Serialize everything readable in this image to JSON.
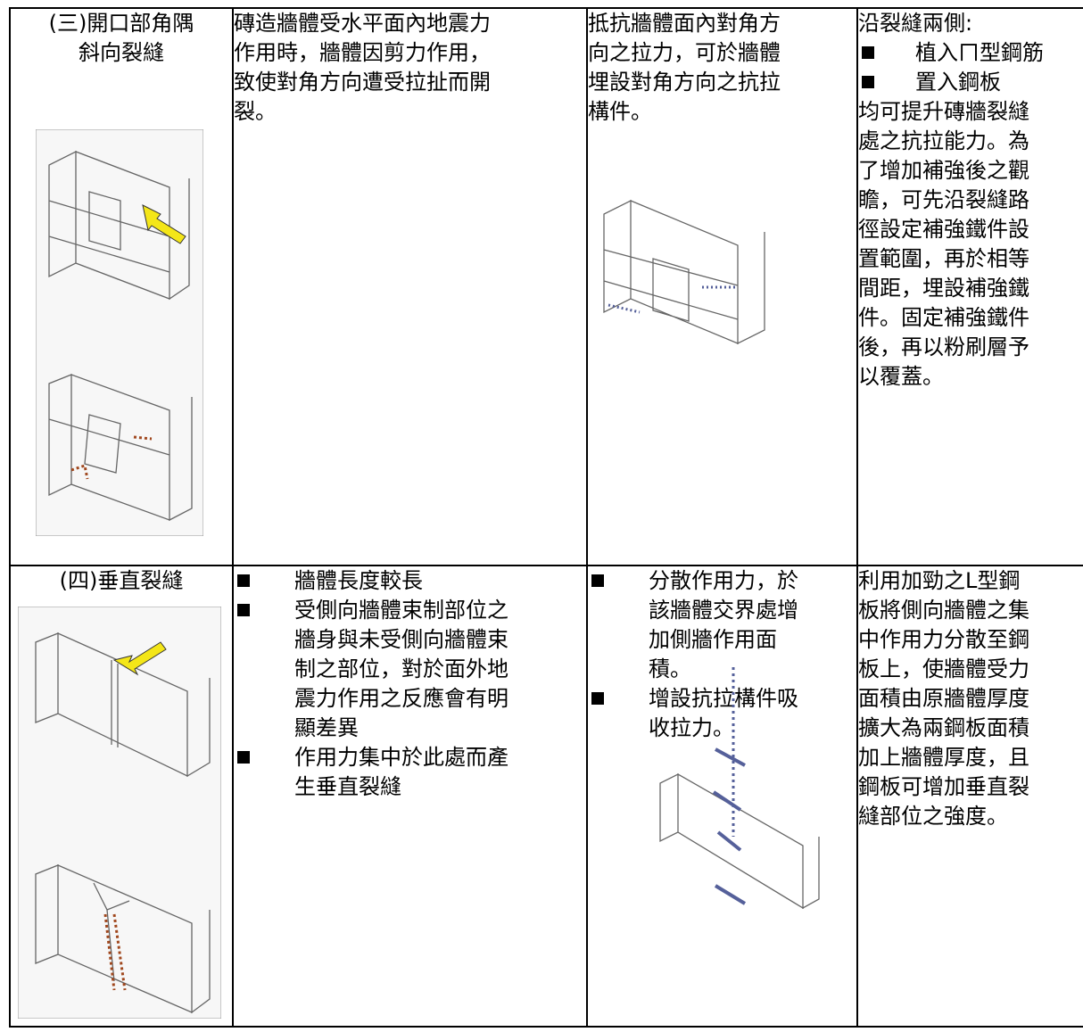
{
  "table": {
    "rows": [
      [
        [
          {
            "center": [
              "(三)開口部角隅",
              "斜向裂縫"
            ]
          }
        ],
        [
          {
            "text": [
              "磚造牆體受水平面內地震力",
              "作用時，牆體因剪力作用，",
              "致使對角方向遭受拉扯而開",
              "裂。"
            ]
          }
        ],
        [
          {
            "text": [
              "抵抗牆體面內對角方",
              "向之拉力，可於牆體",
              "埋設對角方向之抗拉",
              "構件。"
            ]
          }
        ],
        [
          {
            "text": [
              "沿裂縫兩側:"
            ]
          },
          {
            "bullet": [
              "植入ㄇ型鋼筋"
            ]
          },
          {
            "bullet": [
              "置入鋼板"
            ]
          },
          {
            "text": [
              "均可提升磚牆裂縫",
              "處之抗拉能力。為",
              "了增加補強後之觀",
              "瞻，可先沿裂縫路",
              "徑設定補強鐵件設",
              "置範圍，再於相等",
              "間距，埋設補強鐵",
              "件。固定補強鐵件",
              "後，再以粉刷層予",
              "以覆蓋。"
            ]
          }
        ]
      ],
      [
        [
          {
            "center": [
              "(四)垂直裂縫"
            ]
          }
        ],
        [
          {
            "bullet": [
              "牆體長度較長"
            ]
          },
          {
            "bullet": [
              "受側向牆體束制部位之",
              "牆身與未受側向牆體束",
              "制之部位，對於面外地",
              "震力作用之反應會有明",
              "顯差異"
            ]
          },
          {
            "bullet": [
              "作用力集中於此處而產",
              "生垂直裂縫"
            ]
          }
        ],
        [
          {
            "bullet": [
              "分散作用力，於",
              "該牆體交界處增",
              "加側牆作用面",
              "積。"
            ]
          },
          {
            "bullet": [
              "增設抗拉構件吸",
              "收拉力。"
            ]
          }
        ],
        [
          {
            "text": [
              "利用加勁之L型鋼",
              "板將側向牆體之集",
              "中作用力分散至鋼",
              "板上，使牆體受力",
              "面積由原牆體厚度",
              "擴大為兩鋼板面積",
              "加上牆體厚度，且",
              "鋼板可增加垂直裂",
              "縫部位之強度。"
            ]
          }
        ]
      ]
    ]
  }
}
